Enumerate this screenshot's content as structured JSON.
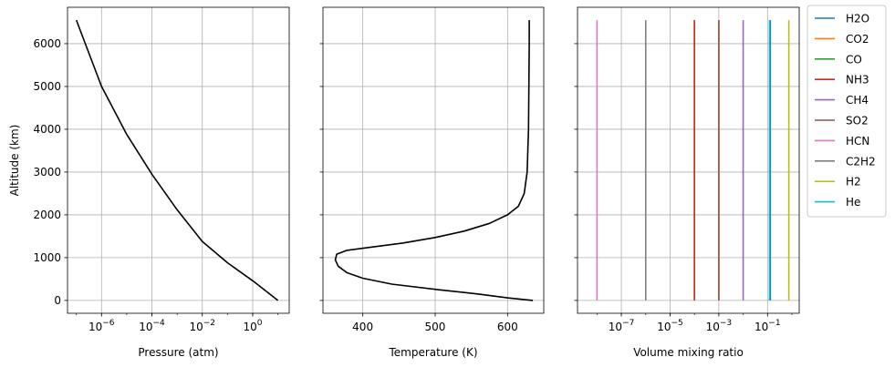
{
  "chart_data": [
    {
      "type": "line",
      "xlabel": "Pressure (atm)",
      "ylabel": "Altitude (km)",
      "xscale": "log",
      "xlim_log10": [
        -7.35,
        1.45
      ],
      "ylim": [
        -300,
        6850
      ],
      "grid": true,
      "x_ticks": [
        {
          "base": "10",
          "exp": "−6",
          "value": 1e-06
        },
        {
          "base": "10",
          "exp": "−4",
          "value": 0.0001
        },
        {
          "base": "10",
          "exp": "−2",
          "value": 0.01
        },
        {
          "base": "10",
          "exp": "0",
          "value": 1
        }
      ],
      "y_ticks": [
        "0",
        "1000",
        "2000",
        "3000",
        "4000",
        "5000",
        "6000"
      ],
      "y_tick_values": [
        0,
        1000,
        2000,
        3000,
        4000,
        5000,
        6000
      ],
      "series": [
        {
          "color": "#000000",
          "points": [
            [
              1e-07,
              6550
            ],
            [
              1e-06,
              5000
            ],
            [
              1e-05,
              3880
            ],
            [
              0.0001,
              2950
            ],
            [
              0.001,
              2120
            ],
            [
              0.01,
              1380
            ],
            [
              0.1,
              880
            ],
            [
              1,
              460
            ],
            [
              10,
              0
            ]
          ]
        }
      ]
    },
    {
      "type": "line",
      "xlabel": "Temperature (K)",
      "xlim": [
        345,
        650
      ],
      "ylim": [
        -300,
        6850
      ],
      "grid": true,
      "x_ticks": [
        "400",
        "500",
        "600"
      ],
      "x_tick_values": [
        400,
        500,
        600
      ],
      "series": [
        {
          "color": "#000000",
          "points": [
            [
              635,
              0
            ],
            [
              600,
              60
            ],
            [
              560,
              150
            ],
            [
              505,
              250
            ],
            [
              440,
              380
            ],
            [
              400,
              520
            ],
            [
              378,
              650
            ],
            [
              366,
              800
            ],
            [
              362,
              950
            ],
            [
              364,
              1080
            ],
            [
              378,
              1170
            ],
            [
              410,
              1240
            ],
            [
              455,
              1340
            ],
            [
              500,
              1470
            ],
            [
              540,
              1620
            ],
            [
              575,
              1800
            ],
            [
              600,
              2000
            ],
            [
              615,
              2200
            ],
            [
              623,
              2500
            ],
            [
              627,
              3000
            ],
            [
              629,
              4000
            ],
            [
              629.5,
              5000
            ],
            [
              630,
              6000
            ],
            [
              630,
              6550
            ]
          ]
        }
      ]
    },
    {
      "type": "line",
      "xlabel": "Volume mixing ratio",
      "xscale": "log",
      "xlim_log10": [
        -8.8,
        0.3
      ],
      "ylim": [
        -300,
        6850
      ],
      "grid": true,
      "x_ticks": [
        {
          "base": "10",
          "exp": "−7",
          "value": 1e-07
        },
        {
          "base": "10",
          "exp": "−5",
          "value": 1e-05
        },
        {
          "base": "10",
          "exp": "−3",
          "value": 0.001
        },
        {
          "base": "10",
          "exp": "−1",
          "value": 0.1
        }
      ],
      "series": [
        {
          "name": "H2O",
          "color": "#1f77b4",
          "value": 0.13
        },
        {
          "name": "CO2",
          "color": "#ff7f0e",
          "value": 0.001
        },
        {
          "name": "CO",
          "color": "#2ca02c",
          "value": 0.0001
        },
        {
          "name": "NH3",
          "color": "#d62728",
          "value": 0.0001
        },
        {
          "name": "CH4",
          "color": "#9467bd",
          "value": 0.01
        },
        {
          "name": "SO2",
          "color": "#8c564b",
          "value": 0.001
        },
        {
          "name": "HCN",
          "color": "#e377c2",
          "value": 1e-08
        },
        {
          "name": "C2H2",
          "color": "#7f7f7f",
          "value": 1e-06
        },
        {
          "name": "H2",
          "color": "#bcbd22",
          "value": 0.75
        },
        {
          "name": "He",
          "color": "#17becf",
          "value": 0.12
        }
      ],
      "y_range": [
        0,
        6550
      ],
      "legend_position": "outside-right"
    }
  ]
}
